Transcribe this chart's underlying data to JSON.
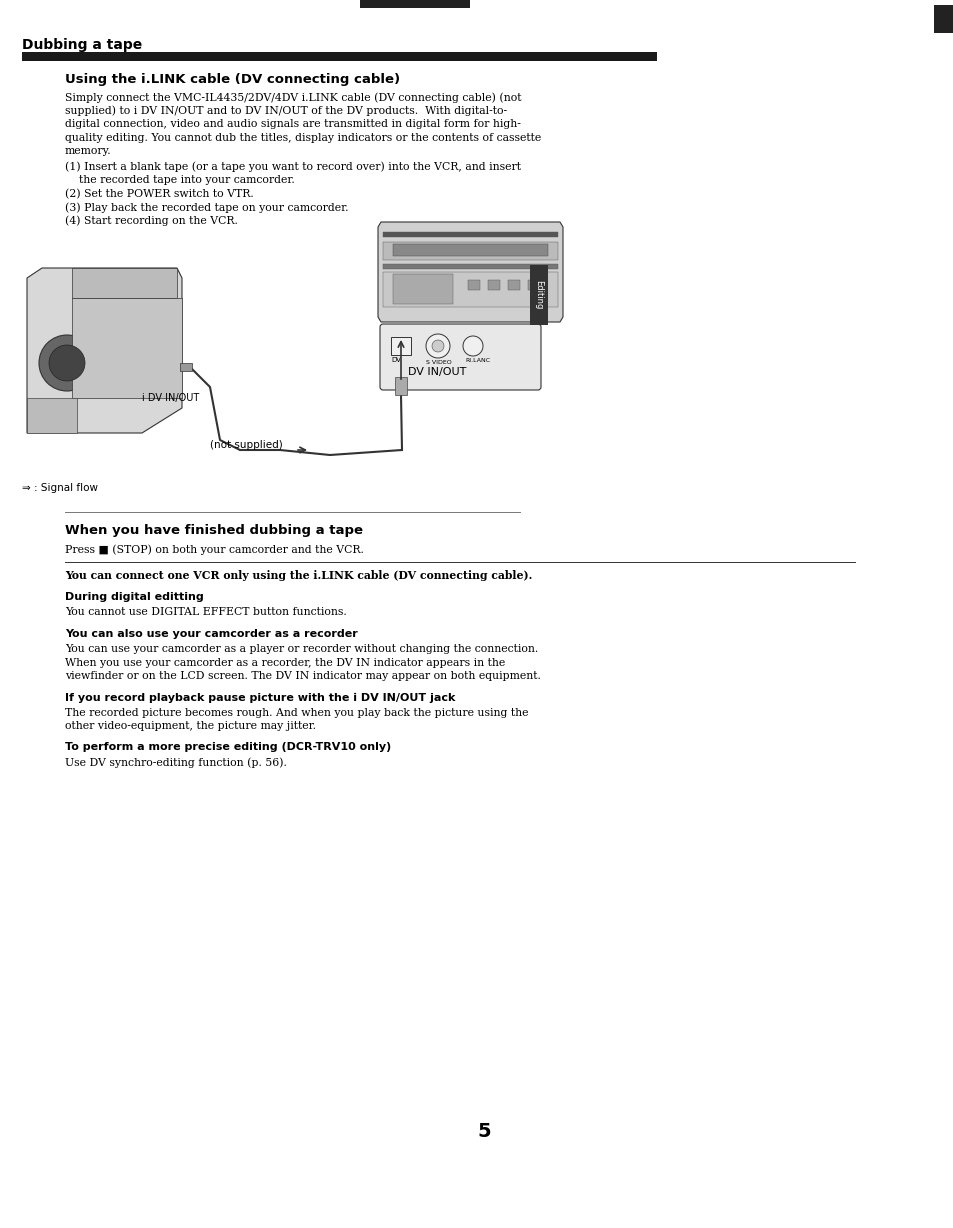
{
  "bg_color": "#ffffff",
  "page_width": 9.54,
  "page_height": 12.28,
  "section_title": "Dubbing a tape",
  "heading1": "Using the i.LINK cable (DV connecting cable)",
  "para1_lines": [
    "Simply connect the VMC-IL4435/2DV/4DV i.LINK cable (DV connecting cable) (not",
    "supplied) to і DV IN/OUT and to DV IN/OUT of the DV products.  With digital-to-",
    "digital connection, video and audio signals are transmitted in digital form for high-",
    "quality editing. You cannot dub the titles, display indicators or the contents of cassette",
    "memory."
  ],
  "step1a": "(1) Insert a blank tape (or a tape you want to record over) into the VCR, and insert",
  "step1b": "    the recorded tape into your camcorder.",
  "step2": "(2) Set the POWER switch to VTR.",
  "step3": "(3) Play back the recorded tape on your camcorder.",
  "step4": "(4) Start recording on the VCR.",
  "dv_inout_left": "і DV IN/OUT",
  "not_supplied": "(not supplied)",
  "dv_inout_right": "DV IN/OUT",
  "editing_label": "Editing",
  "signal_flow_label": "⇒ : Signal flow",
  "heading2": "When you have finished dubbing a tape",
  "para2": "Press ■ (STOP) on both your camcorder and the VCR.",
  "notice1": "You can connect one VCR only using the i.LINK cable (DV connecting cable).",
  "heading3": "During digital editting",
  "para3": "You cannot use DIGITAL EFFECT button functions.",
  "heading4": "You can also use your camcorder as a recorder",
  "para4_lines": [
    "You can use your camcorder as a player or recorder without changing the connection.",
    "When you use your camcorder as a recorder, the DV IN indicator appears in the",
    "viewfinder or on the LCD screen. The DV IN indicator may appear on both equipment."
  ],
  "heading5": "If you record playback pause picture with the і DV IN/OUT jack",
  "para5_lines": [
    "The recorded picture becomes rough. And when you play back the picture using the",
    "other video-equipment, the picture may jitter."
  ],
  "heading6": "To perform a more precise editing (DCR-TRV10 only)",
  "para6": "Use DV synchro-editing function (p. 56).",
  "page_number": "5"
}
